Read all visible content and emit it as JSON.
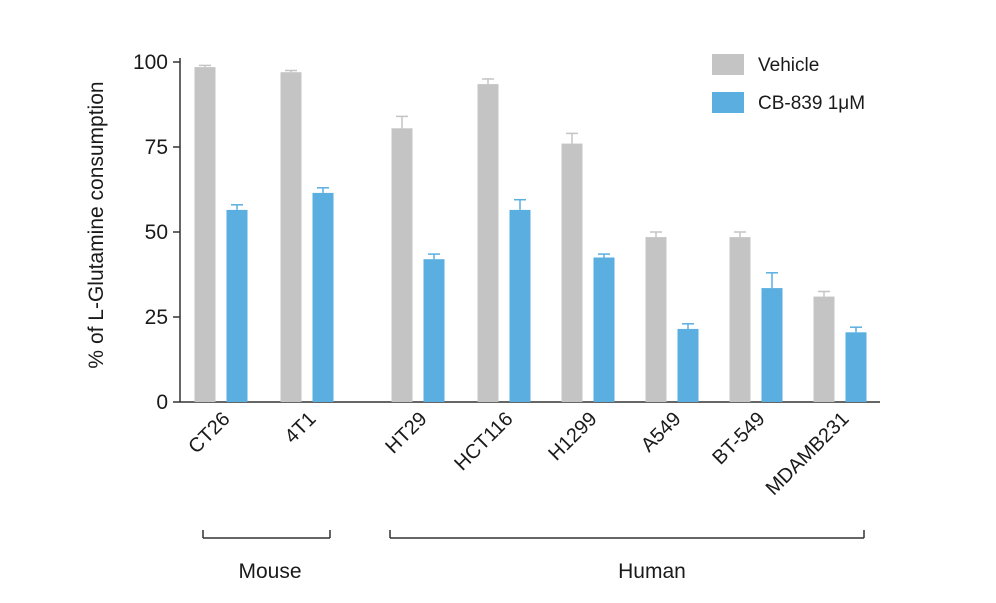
{
  "chart_data": {
    "type": "bar",
    "title": "",
    "xlabel": "",
    "ylabel": "% of L-Glutamine consumption",
    "ylim": [
      0,
      100
    ],
    "yticks": [
      0,
      25,
      50,
      75,
      100
    ],
    "grid": false,
    "legend_position": "top-right",
    "categories": [
      "CT26",
      "4T1",
      "HT29",
      "HCT116",
      "H1299",
      "A549",
      "BT-549",
      "MDAMB231"
    ],
    "series": [
      {
        "name": "Vehicle",
        "color": "#c4c4c4",
        "values": [
          98.5,
          97,
          80.5,
          93.5,
          76,
          48.5,
          48.5,
          31
        ],
        "errors": [
          0.5,
          0.5,
          3.5,
          1.5,
          3,
          1.5,
          1.5,
          1.5
        ]
      },
      {
        "name": "CB-839 1μM",
        "color": "#5aaee0",
        "values": [
          56.5,
          61.5,
          42,
          56.5,
          42.5,
          21.5,
          33.5,
          20.5
        ],
        "errors": [
          1.5,
          1.5,
          1.5,
          3,
          1,
          1.5,
          4.5,
          1.5
        ]
      }
    ],
    "groups": [
      {
        "label": "Mouse",
        "categories": [
          "CT26",
          "4T1"
        ]
      },
      {
        "label": "Human",
        "categories": [
          "HT29",
          "HCT116",
          "H1299",
          "A549",
          "BT-549",
          "MDAMB231"
        ]
      }
    ]
  }
}
